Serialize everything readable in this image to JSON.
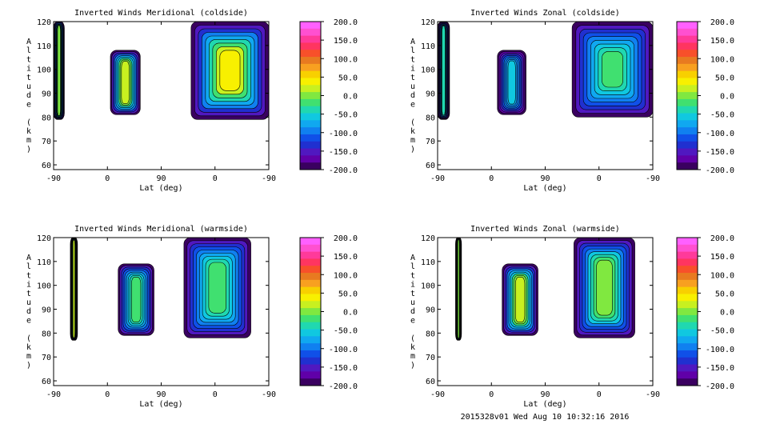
{
  "footer": "2015328v01 Wed Aug 10 10:32:16 2016",
  "colorbar": {
    "labels": [
      "200.0",
      "150.0",
      "100.0",
      "50.0",
      "0.0",
      "-50.0",
      "-100.0",
      "-150.0",
      "-200.0"
    ],
    "colors": [
      "#ff60ff",
      "#ff50d0",
      "#ff3a9a",
      "#ff3560",
      "#f8502a",
      "#e87a20",
      "#f8a020",
      "#f8d000",
      "#f8f000",
      "#c8f020",
      "#80e840",
      "#40e070",
      "#20d8b0",
      "#10c8e0",
      "#10a8f0",
      "#1080f0",
      "#1050e8",
      "#2030d0",
      "#5018c0",
      "#6000a8",
      "#3a0060"
    ]
  },
  "chart_data": [
    {
      "type": "heatmap",
      "title": "Inverted Winds Meridional (coldside)",
      "xlabel": "Lat (deg)",
      "ylabel": "Altitude (km)",
      "x_ticks": [
        "-90",
        "0",
        "90",
        "0",
        "-90"
      ],
      "y_ticks": [
        "60",
        "70",
        "80",
        "90",
        "100",
        "110",
        "120"
      ],
      "ylim": [
        58,
        120
      ],
      "colorbar_range": [
        -200,
        200
      ],
      "regions": [
        {
          "x": [
            -90,
            -72
          ],
          "y": [
            79,
            120
          ],
          "level": 0
        },
        {
          "x": [
            5,
            55
          ],
          "y": [
            81,
            108
          ],
          "level": 30
        },
        {
          "x": [
            140,
            270
          ],
          "y": [
            79,
            120
          ],
          "level": 40
        }
      ]
    },
    {
      "type": "heatmap",
      "title": "Inverted Winds Zonal (coldside)",
      "xlabel": "Lat (deg)",
      "ylabel": "Altitude (km)",
      "x_ticks": [
        "-90",
        "0",
        "90",
        "0",
        "-90"
      ],
      "y_ticks": [
        "60",
        "70",
        "80",
        "90",
        "100",
        "110",
        "120"
      ],
      "ylim": [
        58,
        120
      ],
      "colorbar_range": [
        -200,
        200
      ],
      "regions": [
        {
          "x": [
            -90,
            -70
          ],
          "y": [
            79,
            120
          ],
          "level": -40
        },
        {
          "x": [
            10,
            58
          ],
          "y": [
            81,
            108
          ],
          "level": -60
        },
        {
          "x": [
            135,
            270
          ],
          "y": [
            80,
            120
          ],
          "level": -10
        }
      ]
    },
    {
      "type": "heatmap",
      "title": "Inverted Winds Meridional (warmside)",
      "xlabel": "Lat (deg)",
      "ylabel": "Altitude (km)",
      "x_ticks": [
        "-90",
        "0",
        "90",
        "0",
        "-90"
      ],
      "y_ticks": [
        "60",
        "70",
        "80",
        "90",
        "100",
        "110",
        "120"
      ],
      "ylim": [
        58,
        120
      ],
      "colorbar_range": [
        -200,
        200
      ],
      "regions": [
        {
          "x": [
            -62,
            -50
          ],
          "y": [
            77,
            120
          ],
          "level": 20
        },
        {
          "x": [
            18,
            78
          ],
          "y": [
            79,
            109
          ],
          "level": -10
        },
        {
          "x": [
            128,
            240
          ],
          "y": [
            78,
            120
          ],
          "level": -20
        }
      ]
    },
    {
      "type": "heatmap",
      "title": "Inverted Winds Zonal (warmside)",
      "xlabel": "Lat (deg)",
      "ylabel": "Altitude (km)",
      "x_ticks": [
        "-90",
        "0",
        "90",
        "0",
        "-90"
      ],
      "y_ticks": [
        "60",
        "70",
        "80",
        "90",
        "100",
        "110",
        "120"
      ],
      "ylim": [
        58,
        120
      ],
      "colorbar_range": [
        -200,
        200
      ],
      "regions": [
        {
          "x": [
            -60,
            -50
          ],
          "y": [
            77,
            120
          ],
          "level": 0
        },
        {
          "x": [
            18,
            78
          ],
          "y": [
            79,
            109
          ],
          "level": 30
        },
        {
          "x": [
            138,
            240
          ],
          "y": [
            78,
            120
          ],
          "level": 10
        }
      ]
    }
  ]
}
